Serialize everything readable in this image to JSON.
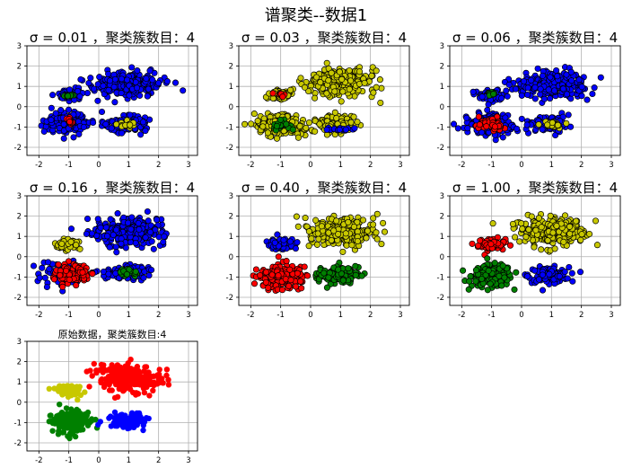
{
  "figure": {
    "suptitle": "谱聚类--数据1"
  },
  "chart_data": [
    {
      "type": "scatter",
      "title": "σ = 0.01 ，聚类簇数目：4",
      "xlim": [
        -2.4,
        3.3
      ],
      "ylim": [
        -2.4,
        3.0
      ],
      "xticks": [
        -2,
        -1,
        0,
        1,
        2,
        3
      ],
      "yticks": [
        -2,
        -1,
        0,
        1,
        2,
        3
      ],
      "grid": true,
      "marker_edge": "#000000",
      "clusters": [
        {
          "color": "#0000ff",
          "center": [
            1.0,
            1.1
          ],
          "spread": [
            0.75,
            0.4
          ],
          "n": 260
        },
        {
          "color": "#0000ff",
          "center": [
            -1.05,
            -0.85
          ],
          "spread": [
            0.45,
            0.35
          ],
          "n": 200
        },
        {
          "color": "#0000ff",
          "center": [
            0.9,
            -0.85
          ],
          "spread": [
            0.45,
            0.25
          ],
          "n": 120
        },
        {
          "color": "#0000ff",
          "center": [
            -1.0,
            0.55
          ],
          "spread": [
            0.3,
            0.18
          ],
          "n": 60
        },
        {
          "color": "#ff0000",
          "center": [
            -1.0,
            -0.7
          ],
          "spread": [
            0.12,
            0.1
          ],
          "n": 12
        },
        {
          "color": "#008000",
          "center": [
            -1.0,
            0.55
          ],
          "spread": [
            0.12,
            0.06
          ],
          "n": 10
        },
        {
          "color": "#c8c800",
          "center": [
            1.0,
            -0.9
          ],
          "spread": [
            0.18,
            0.12
          ],
          "n": 18
        }
      ]
    },
    {
      "type": "scatter",
      "title": "σ = 0.03 ，聚类簇数目：4",
      "xlim": [
        -2.4,
        3.3
      ],
      "ylim": [
        -2.4,
        3.0
      ],
      "xticks": [
        -2,
        -1,
        0,
        1,
        2,
        3
      ],
      "yticks": [
        -2,
        -1,
        0,
        1,
        2,
        3
      ],
      "grid": true,
      "marker_edge": "#000000",
      "clusters": [
        {
          "color": "#c8c800",
          "center": [
            1.0,
            1.2
          ],
          "spread": [
            0.75,
            0.45
          ],
          "n": 260
        },
        {
          "color": "#c8c800",
          "center": [
            -1.0,
            -0.9
          ],
          "spread": [
            0.5,
            0.35
          ],
          "n": 200
        },
        {
          "color": "#c8c800",
          "center": [
            0.9,
            -0.9
          ],
          "spread": [
            0.5,
            0.3
          ],
          "n": 120
        },
        {
          "color": "#c8c800",
          "center": [
            -1.0,
            0.6
          ],
          "spread": [
            0.3,
            0.2
          ],
          "n": 60
        },
        {
          "color": "#ff0000",
          "center": [
            -1.0,
            0.6
          ],
          "spread": [
            0.1,
            0.07
          ],
          "n": 8
        },
        {
          "color": "#008000",
          "center": [
            -1.0,
            -0.9
          ],
          "spread": [
            0.2,
            0.15
          ],
          "n": 25
        },
        {
          "color": "#0000ff",
          "center": [
            1.0,
            -1.1
          ],
          "spread": [
            0.3,
            0.06
          ],
          "n": 18
        }
      ]
    },
    {
      "type": "scatter",
      "title": "σ = 0.06 ，聚类簇数目：4",
      "xlim": [
        -2.4,
        3.3
      ],
      "ylim": [
        -2.4,
        3.0
      ],
      "xticks": [
        -2,
        -1,
        0,
        1,
        2,
        3
      ],
      "yticks": [
        -2,
        -1,
        0,
        1,
        2,
        3
      ],
      "grid": true,
      "marker_edge": "#000000",
      "clusters": [
        {
          "color": "#0000ff",
          "center": [
            1.0,
            1.1
          ],
          "spread": [
            0.75,
            0.4
          ],
          "n": 260
        },
        {
          "color": "#0000ff",
          "center": [
            -1.05,
            -0.85
          ],
          "spread": [
            0.5,
            0.35
          ],
          "n": 170
        },
        {
          "color": "#0000ff",
          "center": [
            0.9,
            -0.85
          ],
          "spread": [
            0.45,
            0.25
          ],
          "n": 110
        },
        {
          "color": "#0000ff",
          "center": [
            -1.0,
            0.55
          ],
          "spread": [
            0.3,
            0.18
          ],
          "n": 60
        },
        {
          "color": "#ff0000",
          "center": [
            -1.0,
            -0.85
          ],
          "spread": [
            0.28,
            0.2
          ],
          "n": 60
        },
        {
          "color": "#008000",
          "center": [
            -1.0,
            0.6
          ],
          "spread": [
            0.12,
            0.06
          ],
          "n": 10
        },
        {
          "color": "#c8c800",
          "center": [
            1.0,
            -0.9
          ],
          "spread": [
            0.2,
            0.12
          ],
          "n": 22
        }
      ]
    },
    {
      "type": "scatter",
      "title": "σ = 0.16 ，聚类簇数目：4",
      "xlim": [
        -2.4,
        3.3
      ],
      "ylim": [
        -2.4,
        3.0
      ],
      "xticks": [
        -2,
        -1,
        0,
        1,
        2,
        3
      ],
      "yticks": [
        -2,
        -1,
        0,
        1,
        2,
        3
      ],
      "grid": true,
      "marker_edge": "#000000",
      "clusters": [
        {
          "color": "#0000ff",
          "center": [
            1.0,
            1.2
          ],
          "spread": [
            0.75,
            0.45
          ],
          "n": 260
        },
        {
          "color": "#0000ff",
          "center": [
            -1.3,
            -0.8
          ],
          "spread": [
            0.45,
            0.35
          ],
          "n": 70
        },
        {
          "color": "#0000ff",
          "center": [
            0.9,
            -0.8
          ],
          "spread": [
            0.5,
            0.25
          ],
          "n": 100
        },
        {
          "color": "#c8c800",
          "center": [
            -1.0,
            0.6
          ],
          "spread": [
            0.28,
            0.18
          ],
          "n": 70
        },
        {
          "color": "#ff0000",
          "center": [
            -0.9,
            -0.85
          ],
          "spread": [
            0.35,
            0.28
          ],
          "n": 140
        },
        {
          "color": "#008000",
          "center": [
            1.0,
            -0.8
          ],
          "spread": [
            0.2,
            0.12
          ],
          "n": 25
        }
      ]
    },
    {
      "type": "scatter",
      "title": "σ = 0.40 ，聚类簇数目：4",
      "xlim": [
        -2.4,
        3.3
      ],
      "ylim": [
        -2.4,
        3.0
      ],
      "xticks": [
        -2,
        -1,
        0,
        1,
        2,
        3
      ],
      "yticks": [
        -2,
        -1,
        0,
        1,
        2,
        3
      ],
      "grid": true,
      "marker_edge": "#000000",
      "clusters": [
        {
          "color": "#c8c800",
          "center": [
            1.0,
            1.25
          ],
          "spread": [
            0.75,
            0.45
          ],
          "n": 260
        },
        {
          "color": "#0000ff",
          "center": [
            -1.0,
            0.6
          ],
          "spread": [
            0.3,
            0.2
          ],
          "n": 70
        },
        {
          "color": "#ff0000",
          "center": [
            -1.0,
            -1.0
          ],
          "spread": [
            0.45,
            0.35
          ],
          "n": 200
        },
        {
          "color": "#008000",
          "center": [
            0.9,
            -0.9
          ],
          "spread": [
            0.45,
            0.25
          ],
          "n": 120
        }
      ]
    },
    {
      "type": "scatter",
      "title": "σ = 1.00 ，聚类簇数目：4",
      "xlim": [
        -2.4,
        3.3
      ],
      "ylim": [
        -2.4,
        3.0
      ],
      "xticks": [
        -2,
        -1,
        0,
        1,
        2,
        3
      ],
      "yticks": [
        -2,
        -1,
        0,
        1,
        2,
        3
      ],
      "grid": true,
      "marker_edge": "#000000",
      "clusters": [
        {
          "color": "#c8c800",
          "center": [
            1.0,
            1.25
          ],
          "spread": [
            0.75,
            0.45
          ],
          "n": 260
        },
        {
          "color": "#ff0000",
          "center": [
            -1.0,
            0.6
          ],
          "spread": [
            0.3,
            0.2
          ],
          "n": 70
        },
        {
          "color": "#008000",
          "center": [
            -1.0,
            -0.95
          ],
          "spread": [
            0.45,
            0.35
          ],
          "n": 200
        },
        {
          "color": "#0000ff",
          "center": [
            0.9,
            -0.9
          ],
          "spread": [
            0.45,
            0.25
          ],
          "n": 120
        }
      ]
    },
    {
      "type": "scatter",
      "title": "原始数据，聚类簇数目:4",
      "xlim": [
        -2.4,
        3.3
      ],
      "ylim": [
        -2.4,
        3.0
      ],
      "xticks": [
        -2,
        -1,
        0,
        1,
        2,
        3
      ],
      "yticks": [
        -2,
        -1,
        0,
        1,
        2,
        3
      ],
      "grid": true,
      "marker_edge": null,
      "clusters": [
        {
          "color": "#ff0000",
          "center": [
            1.0,
            1.2
          ],
          "spread": [
            0.75,
            0.45
          ],
          "n": 260
        },
        {
          "color": "#c8c800",
          "center": [
            -1.0,
            0.6
          ],
          "spread": [
            0.3,
            0.2
          ],
          "n": 70
        },
        {
          "color": "#008000",
          "center": [
            -1.0,
            -0.95
          ],
          "spread": [
            0.45,
            0.35
          ],
          "n": 200
        },
        {
          "color": "#0000ff",
          "center": [
            0.9,
            -0.9
          ],
          "spread": [
            0.45,
            0.25
          ],
          "n": 120
        }
      ]
    }
  ]
}
